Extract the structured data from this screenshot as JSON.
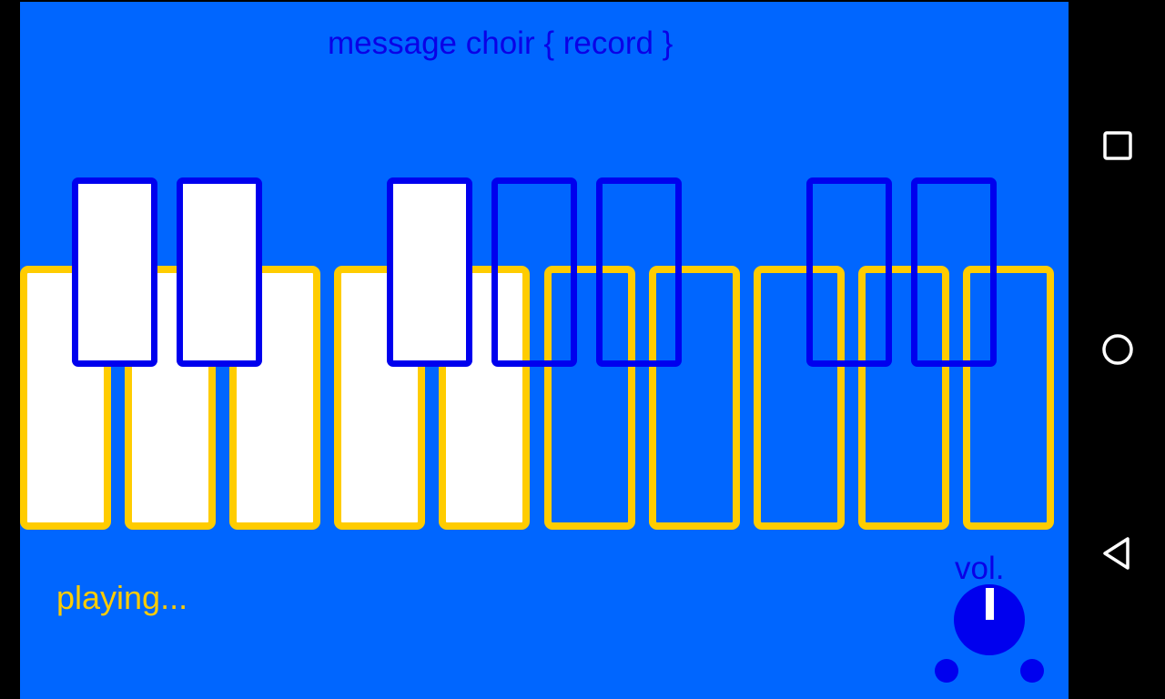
{
  "app": {
    "title": "message choir { record }",
    "status": "playing...",
    "volume_label": "vol."
  },
  "colors": {
    "background": "#0066ff",
    "white_key_border": "#ffcc00",
    "black_key_border": "#0000ee",
    "key_fill": "#ffffff",
    "title_text": "#0a00e6",
    "status_text": "#ffcc00"
  },
  "keyboard": {
    "white_keys_filled": [
      true,
      true,
      true,
      true,
      true,
      false,
      false,
      false,
      false,
      false
    ],
    "black_keys_filled": [
      true,
      true,
      true,
      false,
      false,
      false,
      false
    ]
  },
  "navigation": {
    "buttons": [
      "recent-apps",
      "home",
      "back"
    ]
  }
}
